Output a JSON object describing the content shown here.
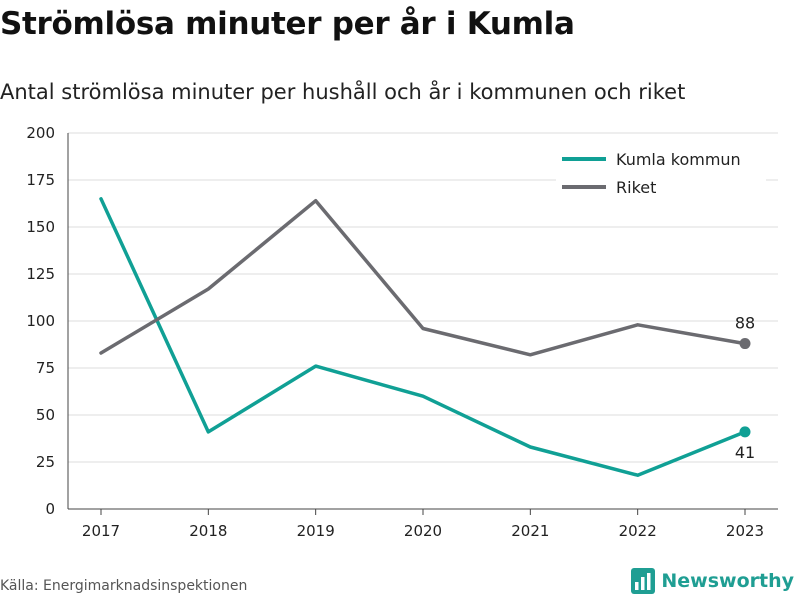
{
  "header": {
    "title": "Strömlösa minuter per år i Kumla",
    "subtitle": "Antal strömlösa minuter per hushåll och år i kommunen och riket"
  },
  "footer": {
    "source": "Källa: Energimarknadsinspektionen",
    "brand": "Newsworthy",
    "brand_color": "#1f9e93",
    "brand_icon": "bar-chart-logo-icon"
  },
  "chart_data": {
    "type": "line",
    "x": [
      "2017",
      "2018",
      "2019",
      "2020",
      "2021",
      "2022",
      "2023"
    ],
    "series": [
      {
        "name": "Kumla kommun",
        "color": "#10a095",
        "values": [
          165,
          41,
          76,
          60,
          33,
          18,
          41
        ],
        "end_label": "41"
      },
      {
        "name": "Riket",
        "color": "#6b6b70",
        "values": [
          83,
          117,
          164,
          96,
          82,
          98,
          88
        ],
        "end_label": "88"
      }
    ],
    "ylim": [
      0,
      200
    ],
    "yticks": [
      0,
      25,
      50,
      75,
      100,
      125,
      150,
      175,
      200
    ],
    "grid": true,
    "legend": "top-right"
  }
}
